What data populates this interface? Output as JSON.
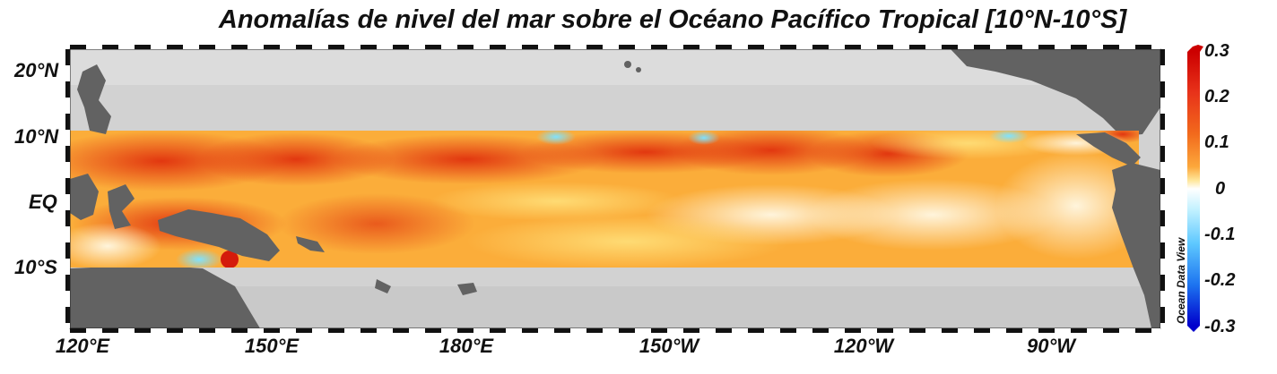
{
  "title": "Anomalías de nivel del mar sobre el Océano Pacífico Tropical [10°N-10°S]",
  "latitude_labels": [
    "20°N",
    "10°N",
    "EQ",
    "10°S"
  ],
  "longitude_labels": [
    "120°E",
    "150°E",
    "180°E",
    "150°W",
    "120°W",
    "90°W"
  ],
  "colorbar": {
    "ticks": [
      "0.3",
      "0.2",
      "0.1",
      "0",
      "-0.1",
      "-0.2",
      "-0.3"
    ],
    "colors": [
      "#cc0000",
      "#e8331a",
      "#f26a1c",
      "#fca83c",
      "#ffe79c",
      "#ffffff",
      "#bff0ff",
      "#5ec8ff",
      "#1d74f0",
      "#0000cc"
    ]
  },
  "credit": "Ocean Data View",
  "map": {
    "land_color": "#626262",
    "ocean_color": "#d2d2d2",
    "band_base_color": "#fbb03b",
    "high_anomaly_color": "#e62a0e",
    "negative_patch_color": "#77dfff"
  }
}
